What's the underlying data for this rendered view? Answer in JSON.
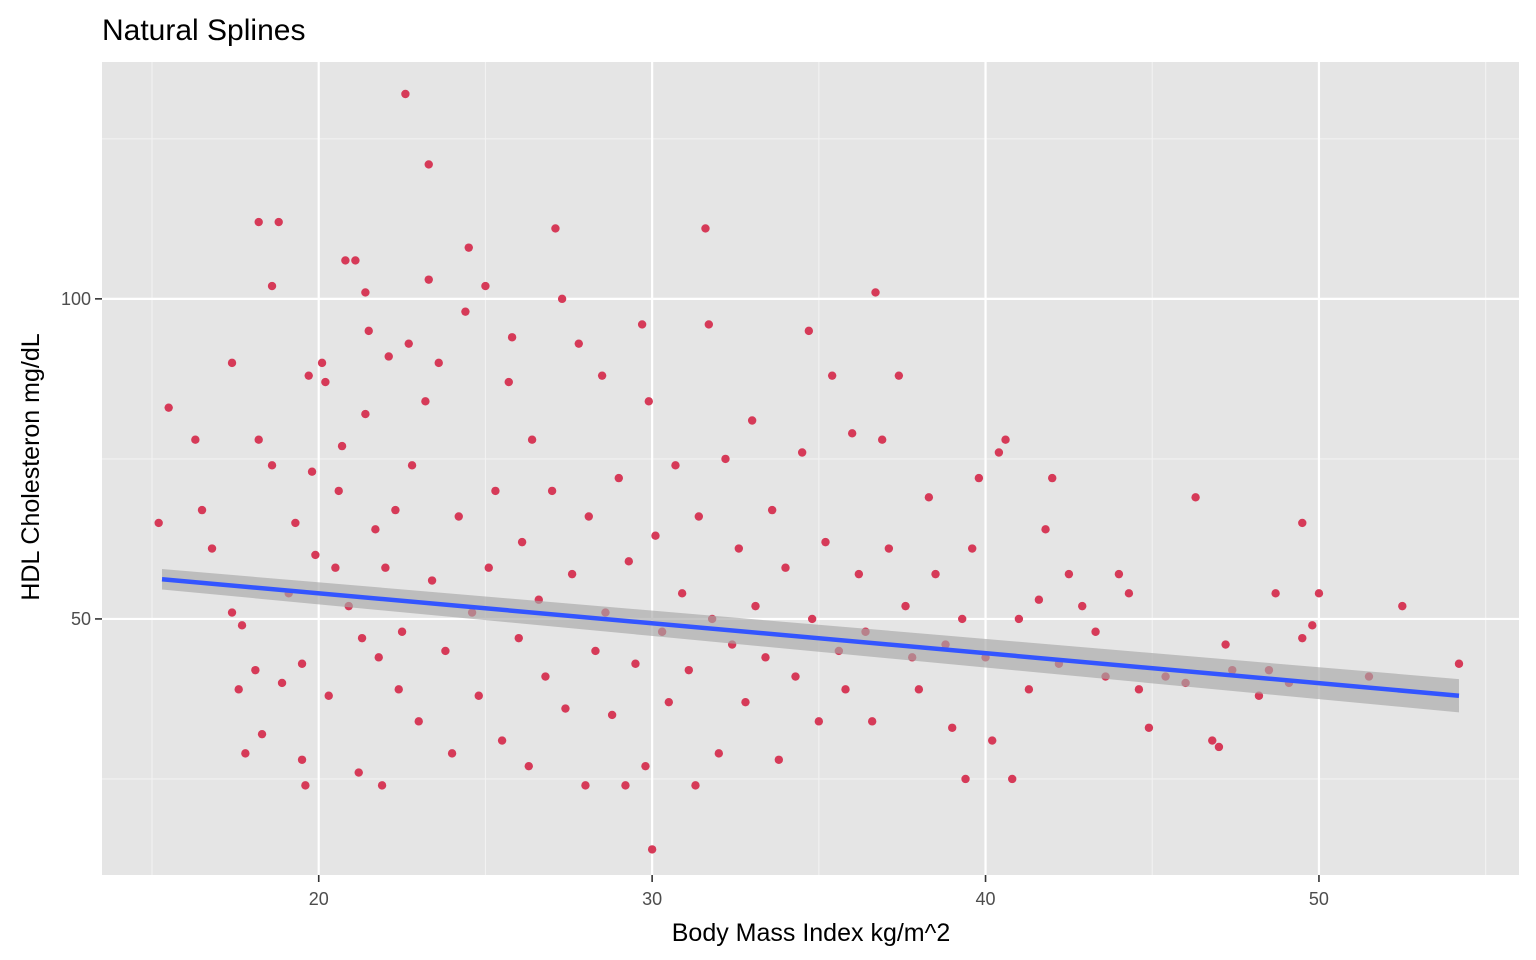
{
  "chart_data": {
    "type": "scatter",
    "title": "Natural Splines",
    "xlabel": "Body Mass Index kg/m^2",
    "ylabel": "HDL Cholesteron mg/dL",
    "xlim": [
      13.5,
      56.0
    ],
    "ylim": [
      10,
      137
    ],
    "x_ticks": [
      20,
      30,
      40,
      50
    ],
    "y_ticks": [
      50,
      100
    ],
    "x_tick_labels": [
      "20",
      "30",
      "40",
      "50"
    ],
    "y_tick_labels": [
      "50",
      "100"
    ],
    "grid": true,
    "legend": "none",
    "point_color": "#d63a58",
    "line_color": "#3355ff",
    "band_color": "#a8a8a8",
    "panel_background": "#e5e5e5",
    "points": [
      [
        15.2,
        65
      ],
      [
        15.5,
        83
      ],
      [
        16.3,
        78
      ],
      [
        16.5,
        67
      ],
      [
        16.8,
        61
      ],
      [
        17.4,
        90
      ],
      [
        17.4,
        51
      ],
      [
        17.6,
        39
      ],
      [
        17.8,
        29
      ],
      [
        17.7,
        49
      ],
      [
        18.2,
        112
      ],
      [
        18.2,
        78
      ],
      [
        18.3,
        32
      ],
      [
        18.1,
        42
      ],
      [
        18.6,
        102
      ],
      [
        18.8,
        112
      ],
      [
        18.6,
        74
      ],
      [
        18.9,
        40
      ],
      [
        19.1,
        54
      ],
      [
        19.3,
        65
      ],
      [
        19.5,
        28
      ],
      [
        19.6,
        24
      ],
      [
        19.7,
        88
      ],
      [
        19.8,
        73
      ],
      [
        19.5,
        43
      ],
      [
        19.9,
        60
      ],
      [
        20.1,
        90
      ],
      [
        20.2,
        87
      ],
      [
        20.3,
        38
      ],
      [
        20.5,
        58
      ],
      [
        20.6,
        70
      ],
      [
        20.8,
        106
      ],
      [
        20.7,
        77
      ],
      [
        20.9,
        52
      ],
      [
        21.1,
        106
      ],
      [
        21.2,
        26
      ],
      [
        21.3,
        47
      ],
      [
        21.4,
        101
      ],
      [
        21.5,
        95
      ],
      [
        21.4,
        82
      ],
      [
        21.7,
        64
      ],
      [
        21.8,
        44
      ],
      [
        21.9,
        24
      ],
      [
        22.0,
        58
      ],
      [
        22.1,
        91
      ],
      [
        22.3,
        67
      ],
      [
        22.4,
        39
      ],
      [
        22.6,
        132
      ],
      [
        22.5,
        48
      ],
      [
        22.7,
        93
      ],
      [
        22.8,
        74
      ],
      [
        23.0,
        34
      ],
      [
        23.2,
        84
      ],
      [
        23.3,
        103
      ],
      [
        23.3,
        121
      ],
      [
        23.4,
        56
      ],
      [
        23.6,
        90
      ],
      [
        23.8,
        45
      ],
      [
        24.0,
        29
      ],
      [
        24.2,
        66
      ],
      [
        24.4,
        98
      ],
      [
        24.5,
        108
      ],
      [
        24.6,
        51
      ],
      [
        24.8,
        38
      ],
      [
        25.0,
        102
      ],
      [
        25.1,
        58
      ],
      [
        25.3,
        70
      ],
      [
        25.5,
        31
      ],
      [
        25.7,
        87
      ],
      [
        25.8,
        94
      ],
      [
        26.0,
        47
      ],
      [
        26.1,
        62
      ],
      [
        26.3,
        27
      ],
      [
        26.4,
        78
      ],
      [
        26.6,
        53
      ],
      [
        26.8,
        41
      ],
      [
        27.0,
        70
      ],
      [
        27.1,
        111
      ],
      [
        27.3,
        100
      ],
      [
        27.4,
        36
      ],
      [
        27.6,
        57
      ],
      [
        27.8,
        93
      ],
      [
        28.0,
        24
      ],
      [
        28.1,
        66
      ],
      [
        28.3,
        45
      ],
      [
        28.5,
        88
      ],
      [
        28.6,
        51
      ],
      [
        28.8,
        35
      ],
      [
        29.0,
        72
      ],
      [
        29.2,
        24
      ],
      [
        29.3,
        59
      ],
      [
        29.5,
        43
      ],
      [
        29.7,
        96
      ],
      [
        29.8,
        27
      ],
      [
        29.9,
        84
      ],
      [
        30.0,
        14
      ],
      [
        30.1,
        63
      ],
      [
        30.3,
        48
      ],
      [
        30.5,
        37
      ],
      [
        30.7,
        74
      ],
      [
        30.9,
        54
      ],
      [
        31.1,
        42
      ],
      [
        31.3,
        24
      ],
      [
        31.4,
        66
      ],
      [
        31.6,
        111
      ],
      [
        31.7,
        96
      ],
      [
        31.8,
        50
      ],
      [
        32.0,
        29
      ],
      [
        32.2,
        75
      ],
      [
        32.4,
        46
      ],
      [
        32.6,
        61
      ],
      [
        32.8,
        37
      ],
      [
        33.0,
        81
      ],
      [
        33.1,
        52
      ],
      [
        33.4,
        44
      ],
      [
        33.6,
        67
      ],
      [
        33.8,
        28
      ],
      [
        34.0,
        58
      ],
      [
        34.3,
        41
      ],
      [
        34.5,
        76
      ],
      [
        34.7,
        95
      ],
      [
        34.8,
        50
      ],
      [
        35.0,
        34
      ],
      [
        35.2,
        62
      ],
      [
        35.4,
        88
      ],
      [
        35.6,
        45
      ],
      [
        35.8,
        39
      ],
      [
        36.0,
        79
      ],
      [
        36.2,
        57
      ],
      [
        36.4,
        48
      ],
      [
        36.6,
        34
      ],
      [
        36.7,
        101
      ],
      [
        36.9,
        78
      ],
      [
        37.1,
        61
      ],
      [
        37.4,
        88
      ],
      [
        37.6,
        52
      ],
      [
        37.8,
        44
      ],
      [
        38.0,
        39
      ],
      [
        38.3,
        69
      ],
      [
        38.5,
        57
      ],
      [
        38.8,
        46
      ],
      [
        39.0,
        33
      ],
      [
        39.3,
        50
      ],
      [
        39.4,
        25
      ],
      [
        39.6,
        61
      ],
      [
        39.8,
        72
      ],
      [
        40.0,
        44
      ],
      [
        40.2,
        31
      ],
      [
        40.4,
        76
      ],
      [
        40.6,
        78
      ],
      [
        40.8,
        25
      ],
      [
        41.0,
        50
      ],
      [
        41.3,
        39
      ],
      [
        41.6,
        53
      ],
      [
        41.8,
        64
      ],
      [
        42.0,
        72
      ],
      [
        42.2,
        43
      ],
      [
        42.5,
        57
      ],
      [
        42.9,
        52
      ],
      [
        43.3,
        48
      ],
      [
        43.6,
        41
      ],
      [
        44.0,
        57
      ],
      [
        44.3,
        54
      ],
      [
        44.6,
        39
      ],
      [
        44.9,
        33
      ],
      [
        45.4,
        41
      ],
      [
        46.0,
        40
      ],
      [
        46.3,
        69
      ],
      [
        46.8,
        31
      ],
      [
        47.0,
        30
      ],
      [
        47.2,
        46
      ],
      [
        47.4,
        42
      ],
      [
        48.2,
        38
      ],
      [
        48.5,
        42
      ],
      [
        48.7,
        54
      ],
      [
        49.1,
        40
      ],
      [
        49.5,
        65
      ],
      [
        49.5,
        47
      ],
      [
        49.8,
        49
      ],
      [
        50.0,
        54
      ],
      [
        51.5,
        41
      ],
      [
        52.5,
        52
      ],
      [
        54.2,
        43
      ]
    ],
    "fit_line": {
      "x": [
        15.3,
        54.2
      ],
      "y": [
        56.2,
        38.0
      ]
    },
    "confidence_band": {
      "x": [
        15.3,
        54.2
      ],
      "lower": [
        54.6,
        35.4
      ],
      "upper": [
        57.8,
        40.6
      ]
    }
  }
}
